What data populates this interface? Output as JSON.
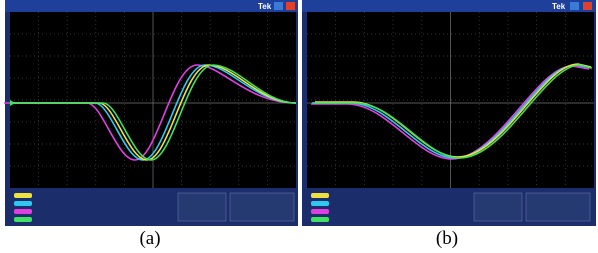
{
  "panels": [
    {
      "brand": "Tek",
      "caption": "(a)"
    },
    {
      "brand": "Tek",
      "caption": "(b)"
    }
  ]
}
